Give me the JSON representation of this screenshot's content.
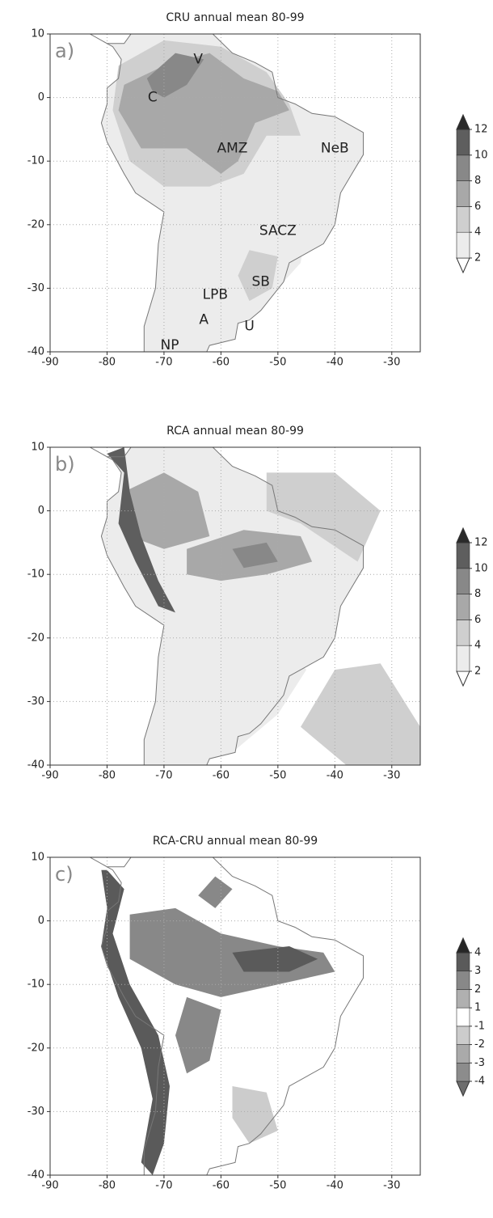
{
  "panels": [
    {
      "title": "CRU annual mean 80-99",
      "label": "a)",
      "xlim": [
        -90,
        -25
      ],
      "ylim": [
        -40,
        10
      ],
      "xticks": [
        -90,
        -80,
        -70,
        -60,
        -50,
        -40,
        -30
      ],
      "yticks": [
        -40,
        -30,
        -20,
        -10,
        0,
        10
      ],
      "colorbar": {
        "levels": [
          2,
          4,
          6,
          8,
          10,
          12
        ],
        "colors": [
          "#ffffff",
          "#ececec",
          "#cfcfcf",
          "#a8a8a8",
          "#888888",
          "#5e5e5e",
          "#2a2a2a"
        ]
      },
      "regions": [
        "V",
        "C",
        "AMZ",
        "NeB",
        "SACZ",
        "SB",
        "LPB",
        "U",
        "A",
        "NP"
      ]
    },
    {
      "title": "RCA annual mean 80-99",
      "label": "b)",
      "xlim": [
        -90,
        -25
      ],
      "ylim": [
        -40,
        10
      ],
      "xticks": [
        -90,
        -80,
        -70,
        -60,
        -50,
        -40,
        -30
      ],
      "yticks": [
        -40,
        -30,
        -20,
        -10,
        0,
        10
      ],
      "colorbar": {
        "levels": [
          2,
          4,
          6,
          8,
          10,
          12
        ],
        "colors": [
          "#ffffff",
          "#ececec",
          "#cfcfcf",
          "#a8a8a8",
          "#888888",
          "#5e5e5e",
          "#2a2a2a"
        ]
      },
      "regions": []
    },
    {
      "title": "RCA-CRU annual mean 80-99",
      "label": "c)",
      "xlim": [
        -90,
        -25
      ],
      "ylim": [
        -40,
        10
      ],
      "xticks": [
        -90,
        -80,
        -70,
        -60,
        -50,
        -40,
        -30
      ],
      "yticks": [
        -40,
        -30,
        -20,
        -10,
        0,
        10
      ],
      "colorbar": {
        "levels": [
          -4,
          -3,
          -2,
          -1,
          1,
          2,
          3,
          4
        ],
        "colors": [
          "#6e6e6e",
          "#8c8c8c",
          "#aaaaaa",
          "#cccccc",
          "#ffffff",
          "#b0b0b0",
          "#888888",
          "#5a5a5a",
          "#262626"
        ]
      },
      "regions": []
    }
  ]
}
